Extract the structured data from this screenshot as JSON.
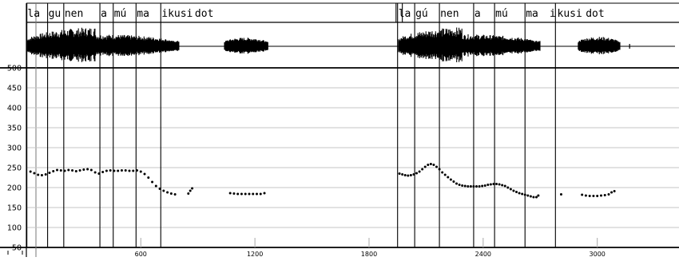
{
  "chart_data": {
    "type": "line",
    "title": "",
    "xlabel": "",
    "ylabel": "",
    "xlim": [
      -500,
      3400
    ],
    "ylim": [
      50,
      500
    ],
    "x_ticks": [
      600,
      1200,
      1800,
      2400,
      3000
    ],
    "y_ticks": [
      50,
      100,
      150,
      200,
      250,
      300,
      350,
      400,
      450,
      500
    ],
    "grid": true,
    "waveform_present": true,
    "segment_times": [
      1,
      110,
      195,
      385,
      455,
      575,
      705,
      1950,
      2040,
      2170,
      2350,
      2460,
      2620,
      2780
    ],
    "syllables": [
      {
        "text": "la",
        "x": 0
      },
      {
        "text": "gu",
        "x": 110
      },
      {
        "text": "nen",
        "x": 195
      },
      {
        "text": "a",
        "x": 385
      },
      {
        "text": "mú",
        "x": 455
      },
      {
        "text": "ma",
        "x": 575
      },
      {
        "text": "ikusi",
        "x": 705
      },
      {
        "text": "dot",
        "x": 880
      },
      {
        "text": "la",
        "x": 1950
      },
      {
        "text": "gú",
        "x": 2040
      },
      {
        "text": "nen",
        "x": 2170
      },
      {
        "text": "a",
        "x": 2350
      },
      {
        "text": "mú",
        "x": 2460
      },
      {
        "text": "ma",
        "x": 2620
      },
      {
        "text": "i",
        "x": 2745
      },
      {
        "text": "kusi",
        "x": 2785
      },
      {
        "text": "dot",
        "x": 2935
      }
    ],
    "series": [
      {
        "points": [
          [
            20,
            240
          ],
          [
            40,
            236
          ],
          [
            60,
            232
          ],
          [
            80,
            231
          ],
          [
            100,
            233
          ],
          [
            120,
            237
          ],
          [
            140,
            241
          ],
          [
            160,
            244
          ],
          [
            180,
            243
          ],
          [
            200,
            242
          ],
          [
            220,
            244
          ],
          [
            240,
            243
          ],
          [
            260,
            241
          ],
          [
            280,
            243
          ],
          [
            300,
            245
          ],
          [
            320,
            246
          ],
          [
            340,
            244
          ],
          [
            360,
            238
          ],
          [
            380,
            235
          ],
          [
            400,
            239
          ],
          [
            420,
            242
          ],
          [
            440,
            243
          ],
          [
            460,
            242
          ],
          [
            480,
            242
          ],
          [
            500,
            243
          ],
          [
            520,
            243
          ],
          [
            540,
            242
          ],
          [
            560,
            242
          ],
          [
            580,
            243
          ],
          [
            600,
            240
          ],
          [
            620,
            234
          ],
          [
            640,
            225
          ],
          [
            660,
            214
          ],
          [
            680,
            204
          ],
          [
            700,
            197
          ],
          [
            720,
            192
          ],
          [
            740,
            188
          ],
          [
            760,
            185
          ],
          [
            780,
            183
          ],
          [
            850,
            185
          ],
          [
            860,
            192
          ],
          [
            870,
            198
          ],
          [
            1070,
            186
          ],
          [
            1090,
            185
          ],
          [
            1110,
            184
          ],
          [
            1130,
            184
          ],
          [
            1150,
            184
          ],
          [
            1170,
            184
          ],
          [
            1190,
            184
          ],
          [
            1210,
            184
          ],
          [
            1230,
            184
          ],
          [
            1250,
            186
          ],
          [
            1960,
            235
          ],
          [
            1975,
            233
          ],
          [
            1990,
            231
          ],
          [
            2005,
            230
          ],
          [
            2020,
            231
          ],
          [
            2035,
            233
          ],
          [
            2050,
            236
          ],
          [
            2065,
            240
          ],
          [
            2080,
            246
          ],
          [
            2095,
            252
          ],
          [
            2110,
            257
          ],
          [
            2125,
            259
          ],
          [
            2140,
            257
          ],
          [
            2155,
            252
          ],
          [
            2170,
            246
          ],
          [
            2185,
            238
          ],
          [
            2200,
            232
          ],
          [
            2215,
            226
          ],
          [
            2230,
            220
          ],
          [
            2245,
            215
          ],
          [
            2260,
            210
          ],
          [
            2275,
            207
          ],
          [
            2290,
            205
          ],
          [
            2305,
            204
          ],
          [
            2320,
            203
          ],
          [
            2335,
            203
          ],
          [
            2350,
            203
          ],
          [
            2365,
            203
          ],
          [
            2380,
            203
          ],
          [
            2395,
            204
          ],
          [
            2410,
            205
          ],
          [
            2425,
            207
          ],
          [
            2440,
            208
          ],
          [
            2455,
            209
          ],
          [
            2470,
            209
          ],
          [
            2485,
            208
          ],
          [
            2500,
            206
          ],
          [
            2515,
            204
          ],
          [
            2530,
            200
          ],
          [
            2545,
            196
          ],
          [
            2560,
            192
          ],
          [
            2575,
            189
          ],
          [
            2590,
            186
          ],
          [
            2605,
            184
          ],
          [
            2620,
            182
          ],
          [
            2635,
            180
          ],
          [
            2650,
            178
          ],
          [
            2665,
            176
          ],
          [
            2680,
            176
          ],
          [
            2690,
            180
          ],
          [
            2810,
            183
          ],
          [
            2920,
            182
          ],
          [
            2940,
            180
          ],
          [
            2960,
            179
          ],
          [
            2980,
            179
          ],
          [
            3000,
            179
          ],
          [
            3020,
            180
          ],
          [
            3040,
            181
          ],
          [
            3060,
            183
          ],
          [
            3075,
            188
          ],
          [
            3090,
            191
          ]
        ]
      }
    ]
  }
}
